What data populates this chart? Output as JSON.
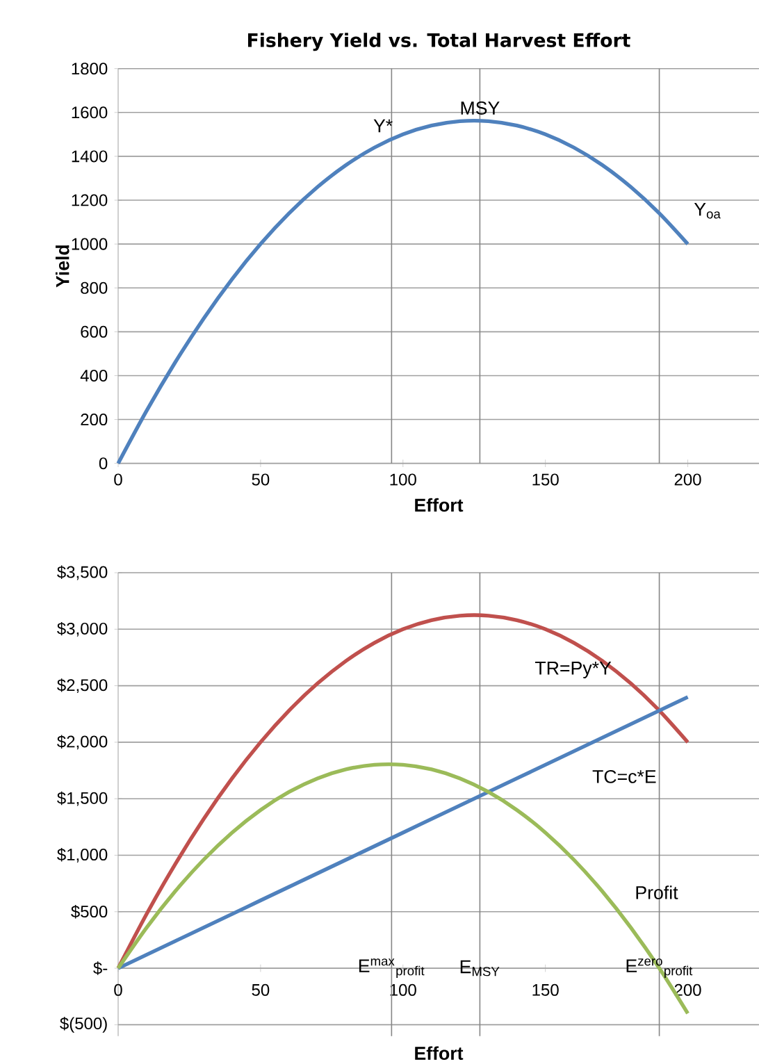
{
  "chart_data": [
    {
      "type": "line",
      "title": "Fishery Yield vs. Total Harvest Effort",
      "xlabel": "Effort",
      "ylabel": "Yield",
      "x": [
        0,
        10,
        20,
        30,
        40,
        50,
        60,
        70,
        80,
        90,
        100,
        110,
        120,
        130,
        140,
        150,
        160,
        170,
        180,
        190,
        200
      ],
      "series": [
        {
          "color": "#4f81bd",
          "values": [
            0,
            240,
            460,
            660,
            840,
            1000,
            1140,
            1260,
            1360,
            1440,
            1500,
            1540,
            1560,
            1560,
            1540,
            1500,
            1440,
            1360,
            1260,
            1140,
            1000
          ]
        }
      ],
      "xlim": [
        0,
        225
      ],
      "xticks": [
        0,
        50,
        100,
        150,
        200
      ],
      "ylim": [
        0,
        1800
      ],
      "yticks": [
        0,
        200,
        400,
        600,
        800,
        1000,
        1200,
        1400,
        1600,
        1800
      ],
      "grid": "y",
      "marker": "none",
      "line_style": "solid",
      "ref_lines": [
        {
          "axis": "x",
          "value": 96,
          "color": "#868686"
        },
        {
          "axis": "x",
          "value": 127,
          "color": "#868686"
        },
        {
          "axis": "x",
          "value": 190,
          "color": "#868686"
        }
      ],
      "annotations": [
        {
          "text": "Y*",
          "x": 93,
          "y": 1500
        },
        {
          "text": "MSY",
          "x": 127,
          "y": 1580
        },
        "Y$_{oa}$"
      ]
    },
    {
      "type": "line",
      "xlabel": "Effort",
      "x": [
        0,
        10,
        20,
        30,
        40,
        50,
        60,
        70,
        80,
        90,
        100,
        110,
        120,
        130,
        140,
        150,
        160,
        170,
        180,
        190,
        200
      ],
      "series": [
        {
          "color": "#c0504d",
          "values": [
            0,
            480,
            920,
            1320,
            1680,
            2000,
            2280,
            2520,
            2720,
            2880,
            3000,
            3080,
            3120,
            3120,
            3080,
            3000,
            2880,
            2720,
            2520,
            2280,
            2000
          ]
        },
        {
          "color": "#4f81bd",
          "values": [
            0,
            120,
            240,
            360,
            480,
            600,
            720,
            840,
            960,
            1080,
            1200,
            1320,
            1440,
            1560,
            1680,
            1800,
            1920,
            2040,
            2160,
            2280,
            2400
          ]
        },
        {
          "color": "#9bbb59",
          "values": [
            0,
            360,
            680,
            960,
            1200,
            1400,
            1560,
            1680,
            1760,
            1800,
            1800,
            1760,
            1680,
            1560,
            1400,
            1200,
            960,
            680,
            360,
            0,
            -400
          ]
        }
      ],
      "xlim": [
        0,
        225
      ],
      "xticks": [
        0,
        50,
        100,
        150,
        200
      ],
      "ylim": [
        -600,
        3500
      ],
      "yticks": [
        {
          "value": -500,
          "label": "$(500)"
        },
        {
          "value": 0,
          "label": "$-"
        },
        {
          "value": 500,
          "label": "$500"
        },
        {
          "value": 1000,
          "label": "$1,000"
        },
        {
          "value": 1500,
          "label": "$1,500"
        },
        {
          "value": 2000,
          "label": "$2,000"
        },
        {
          "value": 2500,
          "label": "$2,500"
        },
        {
          "value": 3000,
          "label": "$3,000"
        },
        {
          "value": 3500,
          "label": "$3,500"
        }
      ],
      "grid": "y",
      "marker": "none",
      "line_style": "solid",
      "ref_lines": [
        {
          "axis": "x",
          "value": 96,
          "color": "#868686"
        },
        {
          "axis": "x",
          "value": 127,
          "color": "#868686"
        },
        {
          "axis": "x",
          "value": 190,
          "color": "#868686"
        }
      ],
      "annotations": [
        "TR=Py*Y",
        "TC=c*E",
        "Profit",
        {
          "text": "E$^{max}$$_{profit}$",
          "x": 96,
          "y": 0
        },
        {
          "text": "E$_{MSY}$",
          "x": 127,
          "y": 0
        },
        {
          "text": "E$^{zero}$$_{profit}$",
          "x": 190,
          "y": 0
        }
      ]
    }
  ]
}
